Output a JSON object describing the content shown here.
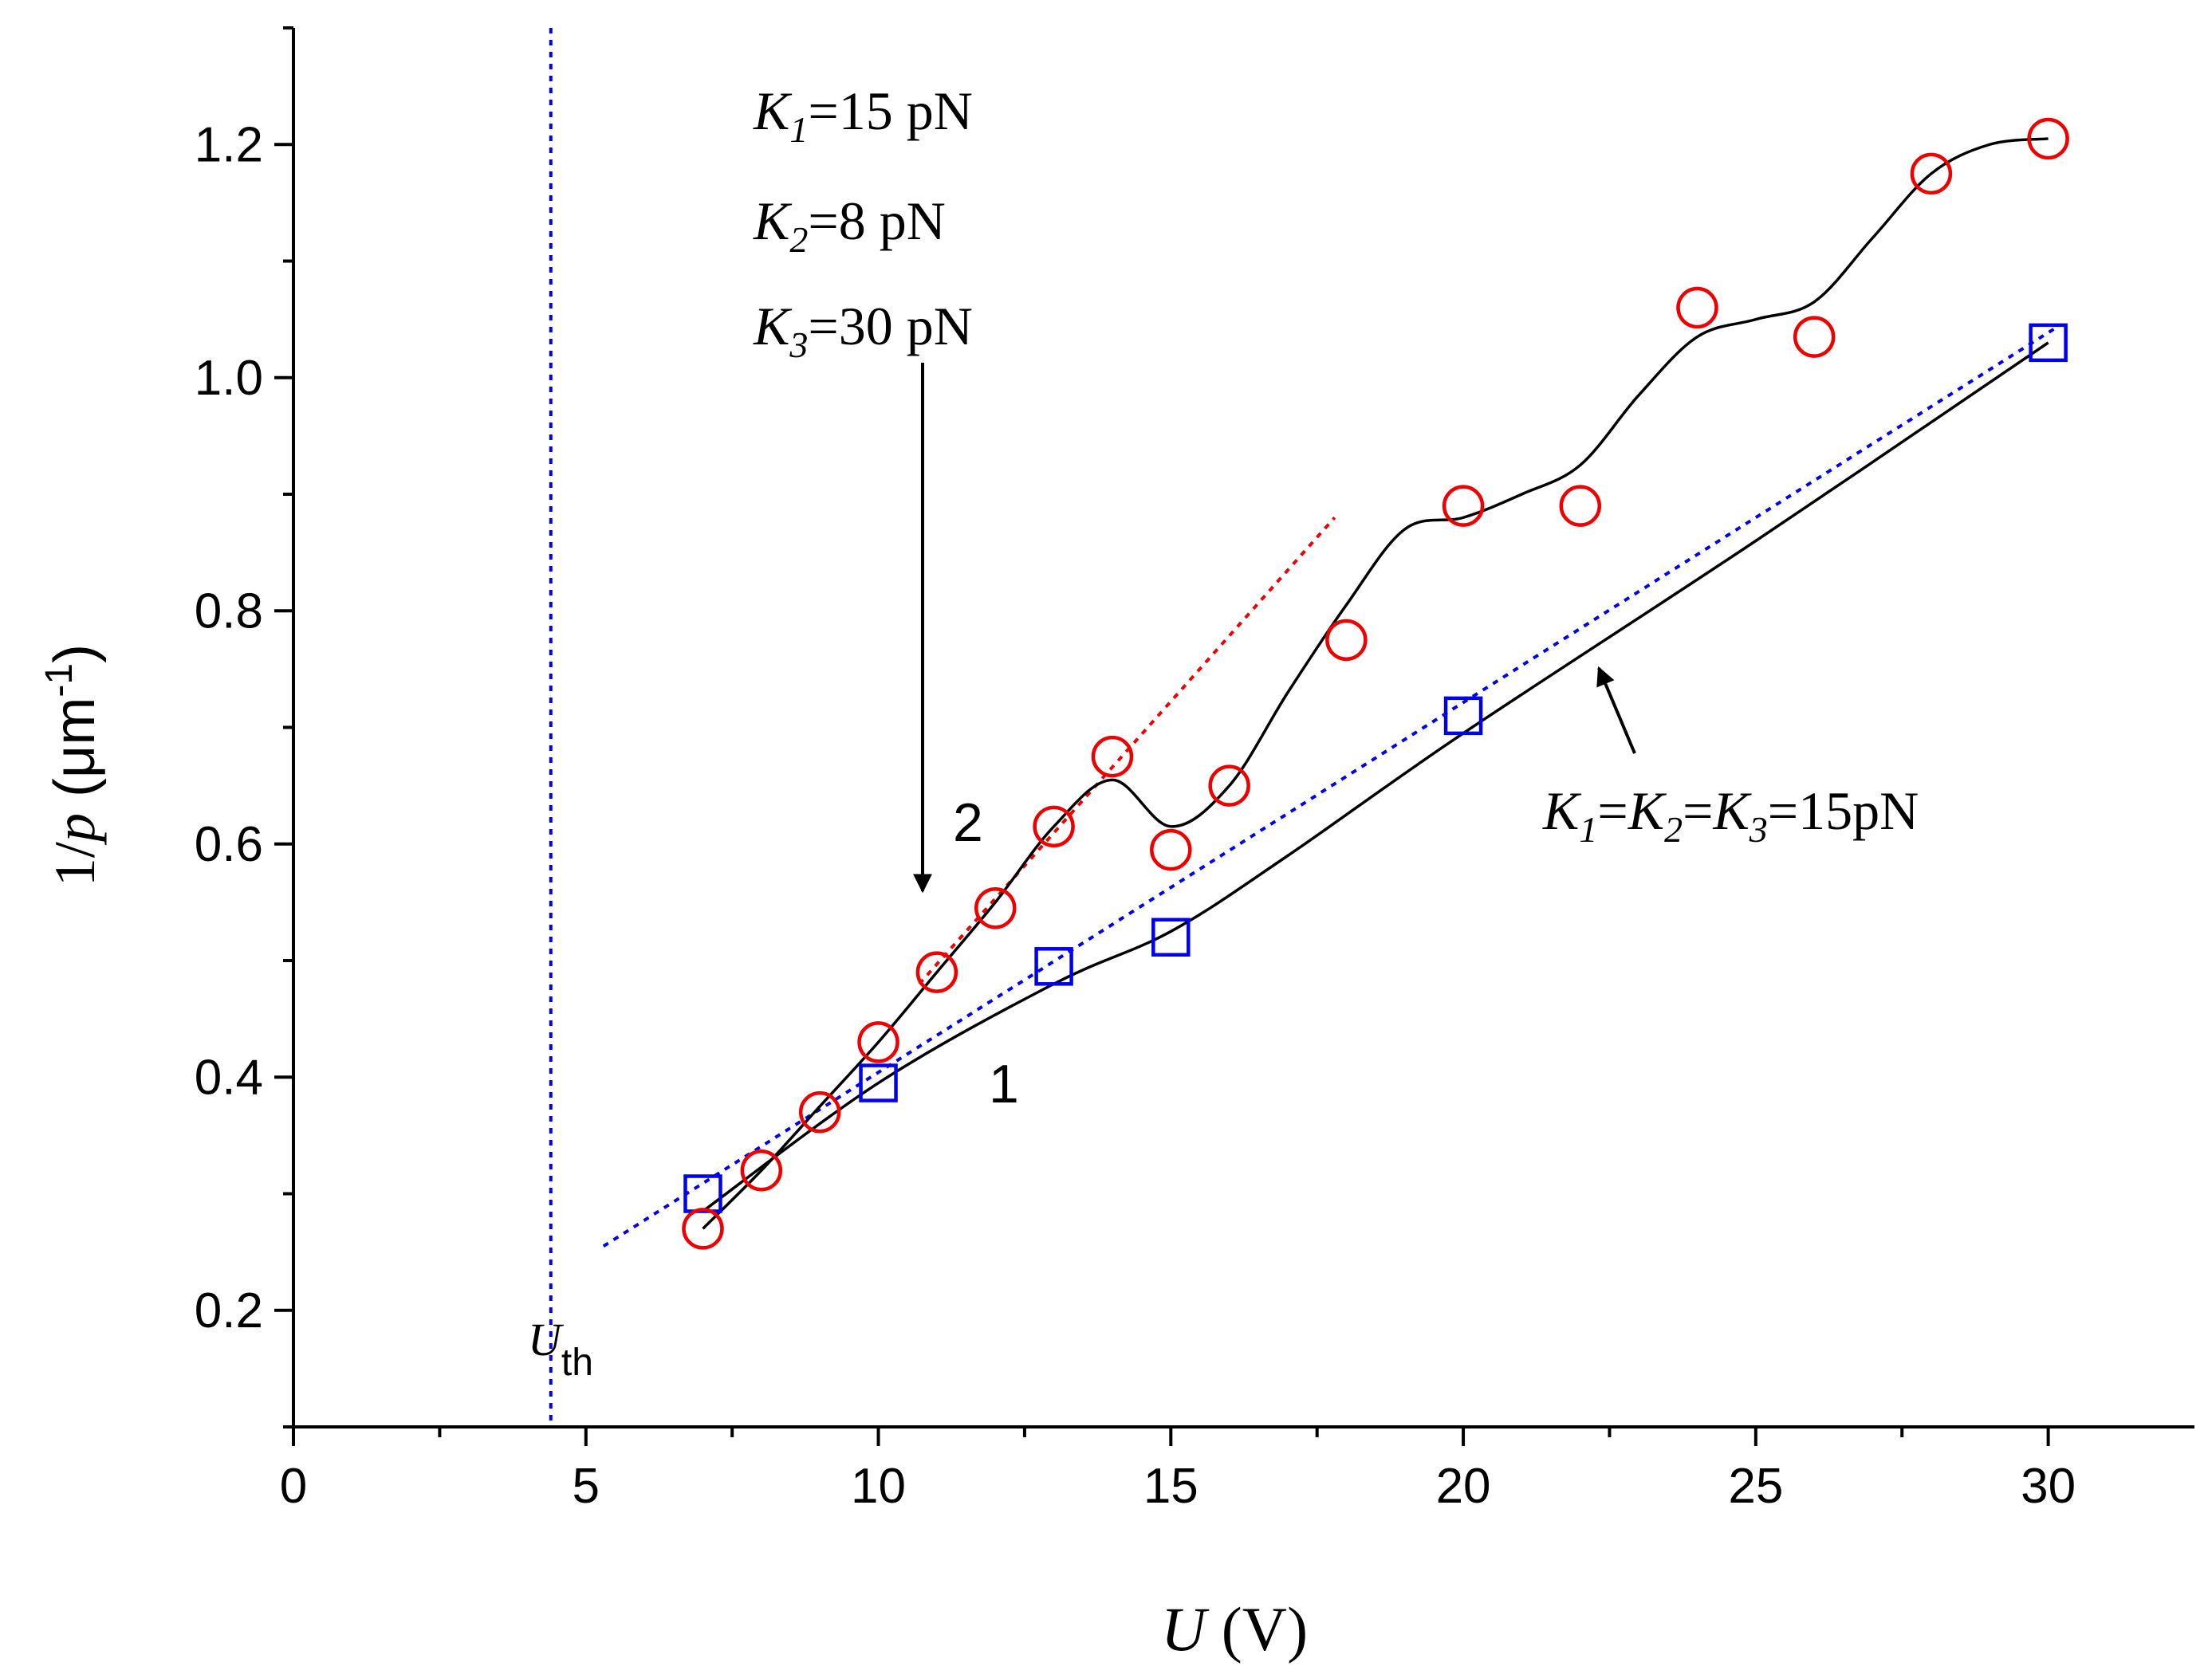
{
  "chart_data": {
    "type": "scatter",
    "x_label": {
      "var": "U",
      "unit": " (V)"
    },
    "y_label": {
      "var_prefix": "1/",
      "var": "p",
      "unit_open": " (μm",
      "unit_sup": "-1",
      "unit_close": ")"
    },
    "xlim": [
      0,
      32.5
    ],
    "ylim": [
      0.1,
      1.3
    ],
    "x_ticks": [
      0,
      5,
      10,
      15,
      20,
      25,
      30
    ],
    "y_ticks": [
      0.2,
      0.4,
      0.6,
      0.8,
      1.0,
      1.2
    ],
    "x_tick_labels": [
      "0",
      "5",
      "10",
      "15",
      "20",
      "25",
      "30"
    ],
    "y_tick_labels": [
      "0.2",
      "0.4",
      "0.6",
      "0.8",
      "1.0",
      "1.2"
    ],
    "series": [
      {
        "name": "1",
        "marker": "square",
        "color": "#0000ee",
        "x": [
          7,
          10,
          13,
          15,
          20,
          30
        ],
        "y": [
          0.3,
          0.395,
          0.495,
          0.52,
          0.71,
          1.03
        ],
        "fit_x": [
          7,
          10,
          13,
          15,
          17,
          20,
          25,
          30
        ],
        "fit_y": [
          0.285,
          0.395,
          0.48,
          0.525,
          0.59,
          0.695,
          0.86,
          1.03
        ]
      },
      {
        "name": "2",
        "marker": "circle",
        "color": "#ee0000",
        "x": [
          7,
          8,
          9,
          10,
          11,
          12,
          13,
          14,
          15,
          16,
          18,
          20,
          22,
          24,
          26,
          28,
          30
        ],
        "y": [
          0.27,
          0.32,
          0.37,
          0.43,
          0.49,
          0.545,
          0.615,
          0.675,
          0.595,
          0.65,
          0.775,
          0.89,
          0.89,
          1.06,
          1.035,
          1.175,
          1.205
        ],
        "fit_x": [
          7,
          8,
          9,
          10,
          11,
          12,
          13,
          14,
          15,
          16,
          17,
          18,
          19,
          20,
          21,
          22,
          23,
          24,
          25,
          26,
          27,
          28,
          29,
          30
        ],
        "fit_y": [
          0.27,
          0.32,
          0.375,
          0.43,
          0.49,
          0.55,
          0.615,
          0.655,
          0.615,
          0.65,
          0.73,
          0.805,
          0.87,
          0.88,
          0.9,
          0.925,
          0.985,
          1.035,
          1.05,
          1.065,
          1.12,
          1.175,
          1.2,
          1.205
        ]
      }
    ],
    "reference_lines": [
      {
        "name": "threshold",
        "color": "#0000ee",
        "style": "dotted",
        "orientation": "vertical",
        "x": 4.4
      },
      {
        "name": "linear-fit-1",
        "color": "#0000ee",
        "style": "dotted",
        "x1": 5.3,
        "y1": 0.255,
        "x2": 30.2,
        "y2": 1.045
      },
      {
        "name": "linear-fit-2",
        "color": "#ee0000",
        "style": "dotted",
        "x1": 10.7,
        "y1": 0.48,
        "x2": 17.8,
        "y2": 0.88
      }
    ],
    "annotations": {
      "uth": {
        "var": "U",
        "sub": "th"
      },
      "params_2": [
        {
          "var": "K",
          "sub": "1",
          "text": "=15 pN"
        },
        {
          "var": "K",
          "sub": "2",
          "text": "=8 pN"
        },
        {
          "var": "K",
          "sub": "3",
          "text": "=30 pN"
        }
      ],
      "params_1": {
        "k1": "K",
        "s1": "1",
        "eq1": "=",
        "k2": "K",
        "s2": "2",
        "eq2": "=",
        "k3": "K",
        "s3": "3",
        "tail": "=15pN"
      },
      "label_2": "2",
      "label_1": "1"
    }
  }
}
